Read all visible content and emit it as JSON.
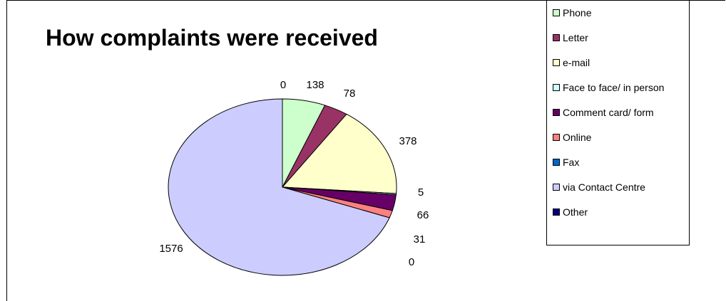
{
  "chart_data": {
    "type": "pie",
    "title": "How complaints were received",
    "slices": [
      {
        "label": "Phone",
        "value": 138,
        "color": "#CCFFCC"
      },
      {
        "label": "Letter",
        "value": 78,
        "color": "#993366"
      },
      {
        "label": "e-mail",
        "value": 378,
        "color": "#FFFFCC"
      },
      {
        "label": "Face to face/ in person",
        "value": 5,
        "color": "#CCFFFF"
      },
      {
        "label": "Comment card/ form",
        "value": 66,
        "color": "#660066"
      },
      {
        "label": "Online",
        "value": 31,
        "color": "#FF8080"
      },
      {
        "label": "Fax",
        "value": 0,
        "color": "#0066CC"
      },
      {
        "label": "via Contact Centre",
        "value": 1576,
        "color": "#CCCCFF"
      },
      {
        "label": "Other",
        "value": 0,
        "color": "#000080"
      }
    ],
    "legend_position": "right"
  }
}
